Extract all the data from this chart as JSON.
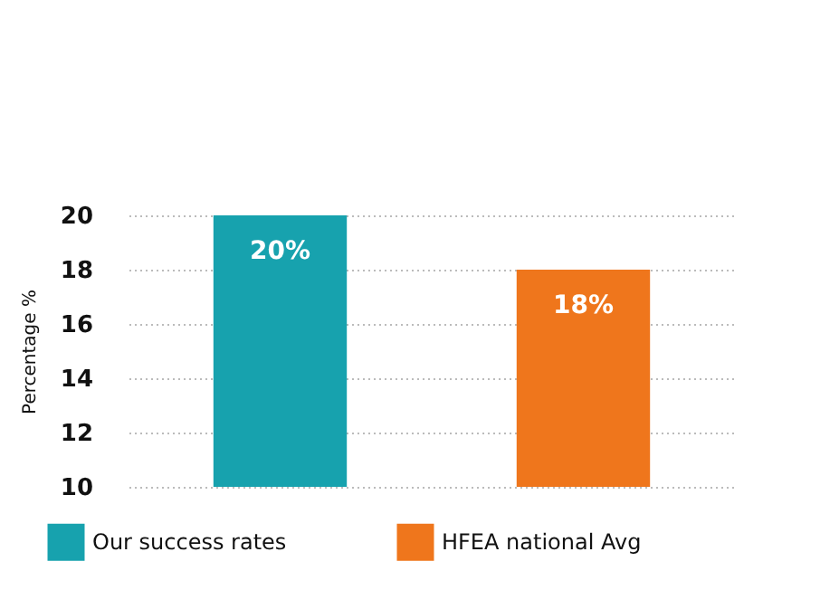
{
  "chart_data": {
    "type": "bar",
    "ylabel": "Percentage %",
    "categories": [
      null,
      null
    ],
    "series": [
      {
        "name": "Our success rates",
        "color": "#17a2ae",
        "values": [
          20,
          null
        ],
        "value_labels": [
          "20%",
          null
        ]
      },
      {
        "name": "HFEA national Avg",
        "color": "#ef761c",
        "values": [
          null,
          18
        ],
        "value_labels": [
          null,
          "18%"
        ]
      }
    ],
    "ylim": [
      10,
      20
    ],
    "yticks": [
      10,
      12,
      14,
      16,
      18,
      20
    ],
    "grid": "y",
    "legend": "bottom"
  }
}
